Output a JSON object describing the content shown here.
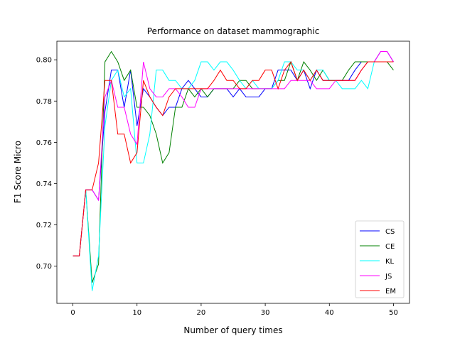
{
  "chart_data": {
    "type": "line",
    "title": "Performance on dataset mammographic",
    "xlabel": "Number of query times",
    "ylabel": "F1 Score Micro",
    "xlim": [
      -2.5,
      52.5
    ],
    "ylim": [
      0.682,
      0.809
    ],
    "xticks": [
      0,
      10,
      20,
      30,
      40,
      50
    ],
    "yticks": [
      0.7,
      0.72,
      0.74,
      0.76,
      0.78,
      0.8
    ],
    "xtick_labels": [
      "0",
      "10",
      "20",
      "30",
      "40",
      "50"
    ],
    "ytick_labels": [
      "0.70",
      "0.72",
      "0.74",
      "0.76",
      "0.78",
      "0.80"
    ],
    "grid": false,
    "legend_position": "lower-right",
    "x": [
      0,
      1,
      2,
      3,
      4,
      5,
      6,
      7,
      8,
      9,
      10,
      11,
      12,
      13,
      14,
      15,
      16,
      17,
      18,
      19,
      20,
      21,
      22,
      23,
      24,
      25,
      26,
      27,
      28,
      29,
      30,
      31,
      32,
      33,
      34,
      35,
      36,
      37,
      38,
      39,
      40,
      41,
      42,
      43,
      44,
      45,
      46,
      47,
      48,
      49,
      50
    ],
    "series": [
      {
        "name": "CS",
        "color": "#0000ff",
        "values": [
          0.705,
          0.705,
          0.737,
          0.737,
          0.732,
          0.775,
          0.795,
          0.795,
          0.777,
          0.795,
          0.768,
          0.786,
          0.782,
          0.777,
          0.773,
          0.777,
          0.777,
          0.786,
          0.79,
          0.786,
          0.782,
          0.782,
          0.786,
          0.786,
          0.786,
          0.782,
          0.786,
          0.782,
          0.782,
          0.782,
          0.786,
          0.786,
          0.795,
          0.795,
          0.795,
          0.79,
          0.795,
          0.786,
          0.795,
          0.79,
          0.79,
          0.79,
          0.79,
          0.79,
          0.795,
          0.799,
          0.799,
          0.799,
          0.804,
          0.804,
          0.799
        ]
      },
      {
        "name": "CE",
        "color": "#008000",
        "values": [
          0.705,
          0.705,
          0.737,
          0.692,
          0.701,
          0.799,
          0.804,
          0.799,
          0.79,
          0.795,
          0.777,
          0.777,
          0.773,
          0.764,
          0.75,
          0.755,
          0.777,
          0.777,
          0.786,
          0.782,
          0.786,
          0.782,
          0.786,
          0.786,
          0.786,
          0.786,
          0.79,
          0.79,
          0.786,
          0.786,
          0.786,
          0.786,
          0.79,
          0.79,
          0.799,
          0.79,
          0.799,
          0.795,
          0.79,
          0.795,
          0.79,
          0.79,
          0.79,
          0.795,
          0.799,
          0.799,
          0.799,
          0.799,
          0.799,
          0.799,
          0.795
        ]
      },
      {
        "name": "KL",
        "color": "#00ffff",
        "values": [
          0.705,
          0.705,
          0.737,
          0.688,
          0.705,
          0.768,
          0.79,
          0.795,
          0.782,
          0.786,
          0.75,
          0.75,
          0.764,
          0.795,
          0.795,
          0.79,
          0.79,
          0.786,
          0.786,
          0.79,
          0.799,
          0.799,
          0.795,
          0.799,
          0.799,
          0.795,
          0.79,
          0.786,
          0.79,
          0.786,
          0.786,
          0.786,
          0.79,
          0.799,
          0.799,
          0.795,
          0.795,
          0.79,
          0.795,
          0.795,
          0.79,
          0.79,
          0.786,
          0.786,
          0.786,
          0.79,
          0.786,
          0.799,
          0.799,
          0.799,
          0.799
        ]
      },
      {
        "name": "JS",
        "color": "#ff00ff",
        "values": [
          0.705,
          0.705,
          0.737,
          0.737,
          0.732,
          0.782,
          0.79,
          0.777,
          0.777,
          0.764,
          0.759,
          0.799,
          0.786,
          0.782,
          0.782,
          0.786,
          0.786,
          0.782,
          0.777,
          0.777,
          0.786,
          0.786,
          0.786,
          0.786,
          0.786,
          0.786,
          0.786,
          0.786,
          0.786,
          0.786,
          0.786,
          0.786,
          0.786,
          0.786,
          0.79,
          0.79,
          0.79,
          0.79,
          0.786,
          0.786,
          0.786,
          0.79,
          0.79,
          0.79,
          0.79,
          0.795,
          0.799,
          0.799,
          0.804,
          0.804,
          0.799
        ]
      },
      {
        "name": "EM",
        "color": "#ff0000",
        "values": [
          0.705,
          0.705,
          0.737,
          0.737,
          0.75,
          0.79,
          0.79,
          0.764,
          0.764,
          0.75,
          0.755,
          0.79,
          0.782,
          0.777,
          0.773,
          0.782,
          0.786,
          0.786,
          0.786,
          0.786,
          0.786,
          0.786,
          0.79,
          0.795,
          0.79,
          0.79,
          0.786,
          0.786,
          0.79,
          0.79,
          0.795,
          0.795,
          0.786,
          0.795,
          0.799,
          0.79,
          0.795,
          0.79,
          0.795,
          0.79,
          0.79,
          0.79,
          0.79,
          0.79,
          0.79,
          0.795,
          0.799,
          0.799,
          0.799,
          0.799,
          0.799
        ]
      }
    ]
  }
}
